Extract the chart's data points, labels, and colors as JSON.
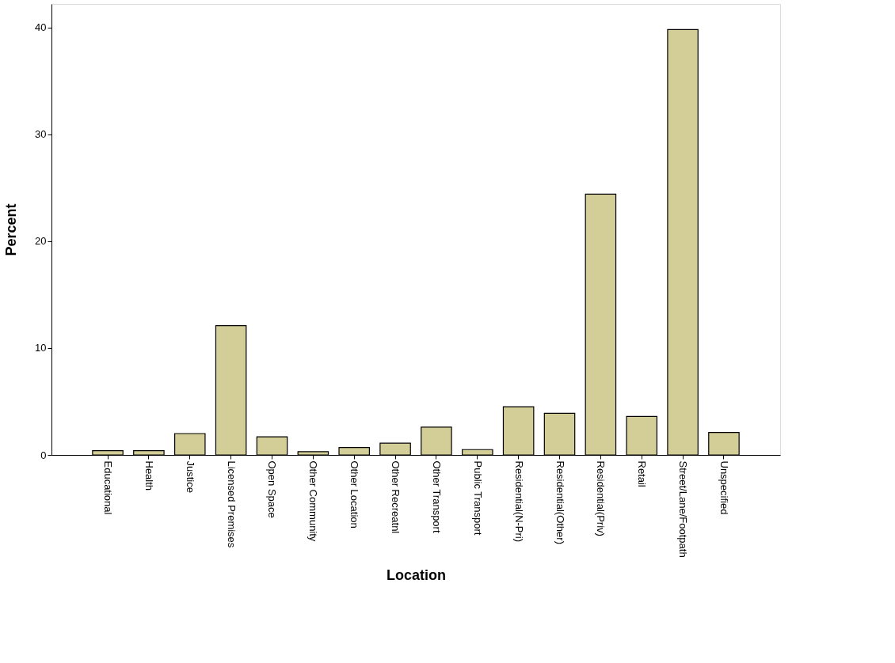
{
  "chart_data": {
    "type": "bar",
    "xlabel": "Location",
    "ylabel": "Percent",
    "categories": [
      "Educational",
      "Health",
      "Justice",
      "Licensed Premises",
      "Open Space",
      "Other Community",
      "Other Location",
      "Other Recreatnl",
      "Other Transport",
      "Public Transport",
      "Residential(N-Pri)",
      "Residential(Other)",
      "Residential(Priv)",
      "Retail",
      "Street/Lane/Footpath",
      "Unspecified"
    ],
    "values": [
      0.4,
      0.4,
      2.0,
      12.1,
      1.7,
      0.3,
      0.7,
      1.1,
      2.6,
      0.5,
      4.5,
      3.9,
      24.4,
      3.6,
      39.8,
      2.1
    ],
    "color": "#d3ce98",
    "ylim": [
      0,
      42.2
    ],
    "yticks": [
      0,
      10,
      20,
      30,
      40
    ],
    "grid": false
  }
}
